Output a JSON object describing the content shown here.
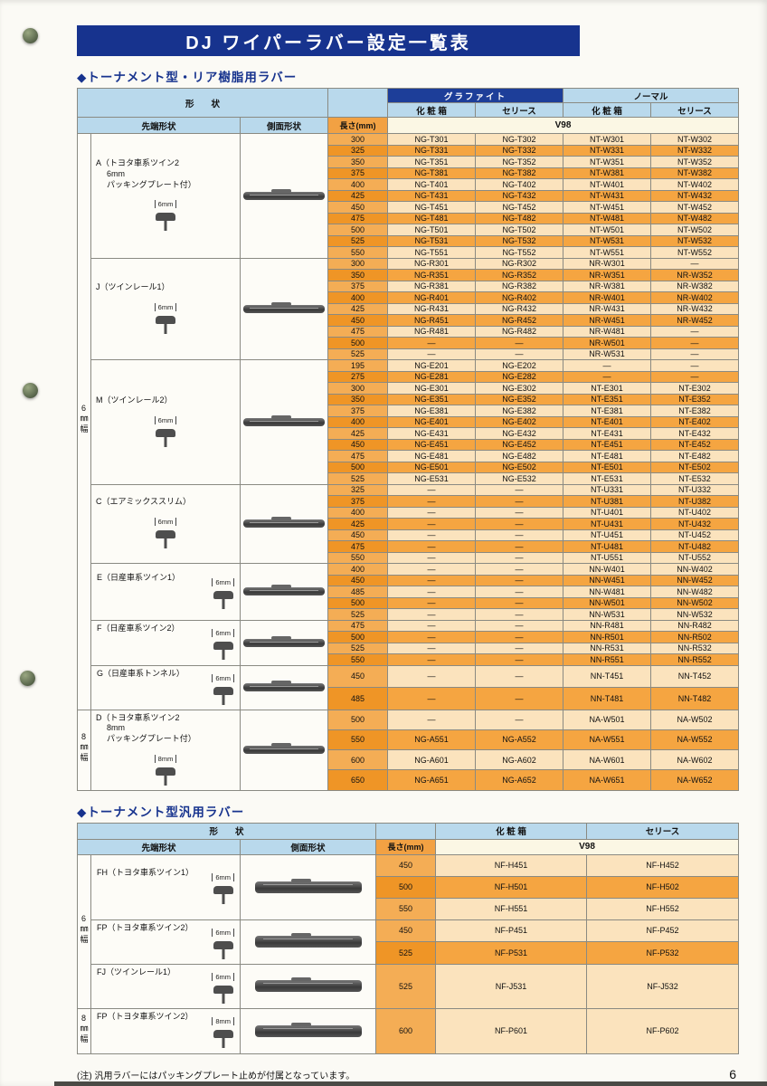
{
  "page": {
    "title": "DJ ワイパーラバー設定一覧表",
    "page_number": "6",
    "footnote": "(注) 汎用ラバーにはパッキングプレート止めが付属となっています。"
  },
  "colors": {
    "title_bar_bg": "#17338e",
    "header_blue_bg": "#b9d9ec",
    "graphite_header_bg": "#1d3e99",
    "length_header_bg": "#f2a143",
    "v98_bg": "#fbf7e4",
    "row_light_bg": "#fbe3bd",
    "row_dark_bg": "#f5a541",
    "length_light_bg": "#f4ad55",
    "length_dark_bg": "#ef9526"
  },
  "table1": {
    "section_title": "◆トーナメント型・リア樹脂用ラバー",
    "header": {
      "shape": "形　　状",
      "tip": "先端形状",
      "side": "側面形状",
      "length": "長さ(mm)",
      "graphite": "グラファイト",
      "normal": "ノーマル",
      "box_g": "化 粧 箱",
      "series_g": "セリース",
      "box_n": "化 粧 箱",
      "series_n": "セリース",
      "v98": "V98"
    },
    "bands": [
      {
        "label": "6㎜幅",
        "groups": [
          0,
          1,
          2,
          3,
          4,
          5,
          6
        ]
      },
      {
        "label": "8㎜幅",
        "groups": [
          7
        ]
      }
    ],
    "groups": [
      {
        "id": "A",
        "label_lines": [
          "A（トヨタ車系ツイン2",
          "6mm",
          "パッキングプレート付）"
        ],
        "dim": "6mm",
        "rows": [
          [
            "300",
            "NG-T301",
            "NG-T302",
            "NT-W301",
            "NT-W302"
          ],
          [
            "325",
            "NG-T331",
            "NG-T332",
            "NT-W331",
            "NT-W332"
          ],
          [
            "350",
            "NG-T351",
            "NG-T352",
            "NT-W351",
            "NT-W352"
          ],
          [
            "375",
            "NG-T381",
            "NG-T382",
            "NT-W381",
            "NT-W382"
          ],
          [
            "400",
            "NG-T401",
            "NG-T402",
            "NT-W401",
            "NT-W402"
          ],
          [
            "425",
            "NG-T431",
            "NG-T432",
            "NT-W431",
            "NT-W432"
          ],
          [
            "450",
            "NG-T451",
            "NG-T452",
            "NT-W451",
            "NT-W452"
          ],
          [
            "475",
            "NG-T481",
            "NG-T482",
            "NT-W481",
            "NT-W482"
          ],
          [
            "500",
            "NG-T501",
            "NG-T502",
            "NT-W501",
            "NT-W502"
          ],
          [
            "525",
            "NG-T531",
            "NG-T532",
            "NT-W531",
            "NT-W532"
          ],
          [
            "550",
            "NG-T551",
            "NG-T552",
            "NT-W551",
            "NT-W552"
          ]
        ]
      },
      {
        "id": "J",
        "label_lines": [
          "J（ツインレール1）"
        ],
        "dim": "6mm",
        "rows": [
          [
            "300",
            "NG-R301",
            "NG-R302",
            "NR-W301",
            "—"
          ],
          [
            "350",
            "NG-R351",
            "NG-R352",
            "NR-W351",
            "NR-W352"
          ],
          [
            "375",
            "NG-R381",
            "NG-R382",
            "NR-W381",
            "NR-W382"
          ],
          [
            "400",
            "NG-R401",
            "NG-R402",
            "NR-W401",
            "NR-W402"
          ],
          [
            "425",
            "NG-R431",
            "NG-R432",
            "NR-W431",
            "NR-W432"
          ],
          [
            "450",
            "NG-R451",
            "NG-R452",
            "NR-W451",
            "NR-W452"
          ],
          [
            "475",
            "NG-R481",
            "NG-R482",
            "NR-W481",
            "—"
          ],
          [
            "500",
            "—",
            "—",
            "NR-W501",
            "—"
          ],
          [
            "525",
            "—",
            "—",
            "NR-W531",
            "—"
          ]
        ]
      },
      {
        "id": "M",
        "label_lines": [
          "M（ツインレール2）"
        ],
        "dim": "6mm",
        "rows": [
          [
            "195",
            "NG-E201",
            "NG-E202",
            "—",
            "—"
          ],
          [
            "275",
            "NG-E281",
            "NG-E282",
            "—",
            "—"
          ],
          [
            "300",
            "NG-E301",
            "NG-E302",
            "NT-E301",
            "NT-E302"
          ],
          [
            "350",
            "NG-E351",
            "NG-E352",
            "NT-E351",
            "NT-E352"
          ],
          [
            "375",
            "NG-E381",
            "NG-E382",
            "NT-E381",
            "NT-E382"
          ],
          [
            "400",
            "NG-E401",
            "NG-E402",
            "NT-E401",
            "NT-E402"
          ],
          [
            "425",
            "NG-E431",
            "NG-E432",
            "NT-E431",
            "NT-E432"
          ],
          [
            "450",
            "NG-E451",
            "NG-E452",
            "NT-E451",
            "NT-E452"
          ],
          [
            "475",
            "NG-E481",
            "NG-E482",
            "NT-E481",
            "NT-E482"
          ],
          [
            "500",
            "NG-E501",
            "NG-E502",
            "NT-E501",
            "NT-E502"
          ],
          [
            "525",
            "NG-E531",
            "NG-E532",
            "NT-E531",
            "NT-E532"
          ]
        ]
      },
      {
        "id": "C",
        "label_lines": [
          "C（エアミックススリム）"
        ],
        "dim": "6mm",
        "rows": [
          [
            "325",
            "—",
            "—",
            "NT-U331",
            "NT-U332"
          ],
          [
            "375",
            "—",
            "—",
            "NT-U381",
            "NT-U382"
          ],
          [
            "400",
            "—",
            "—",
            "NT-U401",
            "NT-U402"
          ],
          [
            "425",
            "—",
            "—",
            "NT-U431",
            "NT-U432"
          ],
          [
            "450",
            "—",
            "—",
            "NT-U451",
            "NT-U452"
          ],
          [
            "475",
            "—",
            "—",
            "NT-U481",
            "NT-U482"
          ],
          [
            "550",
            "—",
            "—",
            "NT-U551",
            "NT-U552"
          ]
        ]
      },
      {
        "id": "E",
        "label_lines": [
          "E（日産車系ツイン1）"
        ],
        "dim": "6mm",
        "rows": [
          [
            "400",
            "—",
            "—",
            "NN-W401",
            "NN-W402"
          ],
          [
            "450",
            "—",
            "—",
            "NN-W451",
            "NN-W452"
          ],
          [
            "485",
            "—",
            "—",
            "NN-W481",
            "NN-W482"
          ],
          [
            "500",
            "—",
            "—",
            "NN-W501",
            "NN-W502"
          ],
          [
            "525",
            "—",
            "—",
            "NN-W531",
            "NN-W532"
          ]
        ]
      },
      {
        "id": "F",
        "label_lines": [
          "F（日産車系ツイン2）"
        ],
        "dim": "6mm",
        "rows": [
          [
            "475",
            "—",
            "—",
            "NN-R481",
            "NN-R482"
          ],
          [
            "500",
            "—",
            "—",
            "NN-R501",
            "NN-R502"
          ],
          [
            "525",
            "—",
            "—",
            "NN-R531",
            "NN-R532"
          ],
          [
            "550",
            "—",
            "—",
            "NN-R551",
            "NN-R552"
          ]
        ]
      },
      {
        "id": "G",
        "label_lines": [
          "G（日産車系トンネル）"
        ],
        "dim": "6mm",
        "rows": [
          [
            "450",
            "—",
            "—",
            "NN-T451",
            "NN-T452"
          ],
          [
            "485",
            "—",
            "—",
            "NN-T481",
            "NN-T482"
          ]
        ]
      },
      {
        "id": "D",
        "label_lines": [
          "D（トヨタ車系ツイン2",
          "8mm",
          "パッキングプレート付）"
        ],
        "dim": "8mm",
        "rows": [
          [
            "500",
            "—",
            "—",
            "NA-W501",
            "NA-W502"
          ],
          [
            "550",
            "NG-A551",
            "NG-A552",
            "NA-W551",
            "NA-W552"
          ],
          [
            "600",
            "NG-A601",
            "NG-A602",
            "NA-W601",
            "NA-W602"
          ],
          [
            "650",
            "NG-A651",
            "NG-A652",
            "NA-W651",
            "NA-W652"
          ]
        ]
      }
    ]
  },
  "table2": {
    "section_title": "◆トーナメント型汎用ラバー",
    "header": {
      "shape": "形　　状",
      "tip": "先端形状",
      "side": "側面形状",
      "length": "長さ(mm)",
      "box": "化 粧 箱",
      "series": "セリース",
      "v98": "V98"
    },
    "bands": [
      {
        "label": "6㎜幅",
        "groups": [
          0,
          1,
          2
        ]
      },
      {
        "label": "8㎜幅",
        "groups": [
          3
        ]
      }
    ],
    "groups": [
      {
        "id": "FH",
        "label_lines": [
          "FH（トヨタ車系ツイン1）"
        ],
        "dim": "6mm",
        "rows": [
          [
            "450",
            "NF-H451",
            "NF-H452"
          ],
          [
            "500",
            "NF-H501",
            "NF-H502"
          ],
          [
            "550",
            "NF-H551",
            "NF-H552"
          ]
        ]
      },
      {
        "id": "FP",
        "label_lines": [
          "FP（トヨタ車系ツイン2）"
        ],
        "dim": "6mm",
        "rows": [
          [
            "450",
            "NF-P451",
            "NF-P452"
          ],
          [
            "525",
            "NF-P531",
            "NF-P532"
          ]
        ]
      },
      {
        "id": "FJ",
        "label_lines": [
          "FJ（ツインレール1）"
        ],
        "dim": "6mm",
        "rows": [
          [
            "525",
            "NF-J531",
            "NF-J532"
          ]
        ]
      },
      {
        "id": "FP8",
        "label_lines": [
          "FP（トヨタ車系ツイン2）"
        ],
        "dim": "8mm",
        "rows": [
          [
            "600",
            "NF-P601",
            "NF-P602"
          ]
        ]
      }
    ]
  }
}
